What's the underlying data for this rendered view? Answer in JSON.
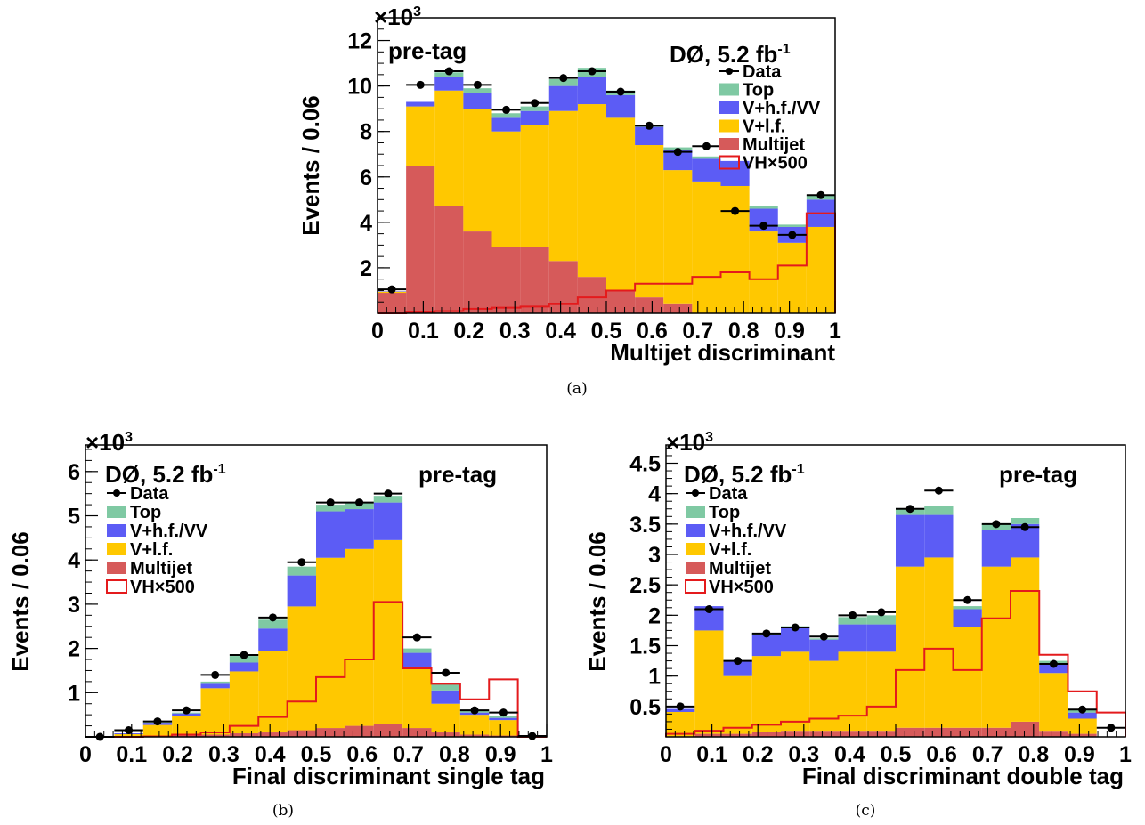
{
  "colors": {
    "top": "#7fc9a3",
    "vhf": "#5c5cf5",
    "vlf": "#ffc800",
    "multijet": "#d65a5a",
    "signal": "#e41a1c",
    "data": "#000000"
  },
  "chart_data": [
    {
      "id": "a",
      "type": "bar",
      "stacked": true,
      "caption": "(a)",
      "annotation_left": "pre-tag",
      "annotation_right_main": "DØ, 5.2 fb",
      "annotation_right_sup": "-1",
      "xlabel": "Multijet discriminant",
      "ylabel": "Events / 0.06",
      "y_multiplier_base": "×10",
      "y_multiplier_exp": "3",
      "xlim": [
        0,
        1
      ],
      "ylim": [
        0,
        13
      ],
      "xticks": [
        "0",
        "0.1",
        "0.2",
        "0.3",
        "0.4",
        "0.5",
        "0.6",
        "0.7",
        "0.8",
        "0.9",
        "1"
      ],
      "yticks": [
        "2",
        "4",
        "6",
        "8",
        "10",
        "12"
      ],
      "ytick_values": [
        2,
        4,
        6,
        8,
        10,
        12
      ],
      "legend_position": "top-right",
      "legend": [
        "Data",
        "Top",
        "V+h.f./VV",
        "V+l.f.",
        "Multijet",
        "VH×500"
      ],
      "bin_edges": [
        0,
        0.0625,
        0.125,
        0.1875,
        0.25,
        0.3125,
        0.375,
        0.4375,
        0.5,
        0.5625,
        0.625,
        0.6875,
        0.75,
        0.8125,
        0.875,
        0.9375,
        1.0
      ],
      "series": [
        {
          "name": "Multijet",
          "key": "multijet",
          "values": [
            0.9,
            6.5,
            4.7,
            3.6,
            2.9,
            2.9,
            2.3,
            1.6,
            1.0,
            0.7,
            0.4,
            0.0,
            0.0,
            0.0,
            0.0,
            0.0
          ]
        },
        {
          "name": "V+l.f.",
          "key": "vlf",
          "values": [
            0.05,
            2.6,
            5.1,
            5.4,
            5.1,
            5.4,
            6.6,
            7.6,
            7.6,
            6.7,
            5.9,
            5.8,
            5.6,
            3.6,
            3.1,
            3.8
          ]
        },
        {
          "name": "V+h.f./VV",
          "key": "vhf",
          "values": [
            0.02,
            0.2,
            0.6,
            0.7,
            0.6,
            0.6,
            1.1,
            1.2,
            1.0,
            0.8,
            0.9,
            1.0,
            1.1,
            1.0,
            0.7,
            1.2
          ]
        },
        {
          "name": "Top",
          "key": "top",
          "values": [
            0.0,
            0.0,
            0.2,
            0.2,
            0.2,
            0.2,
            0.3,
            0.4,
            0.2,
            0.1,
            0.1,
            0.1,
            0.0,
            0.1,
            0.1,
            0.2
          ]
        }
      ],
      "signal": {
        "name": "VH×500",
        "values": [
          0.0,
          0.05,
          0.1,
          0.2,
          0.25,
          0.3,
          0.4,
          0.7,
          1.0,
          1.3,
          1.3,
          1.6,
          1.8,
          1.5,
          2.1,
          4.4
        ]
      },
      "data": {
        "name": "Data",
        "values": [
          1.05,
          10.05,
          10.65,
          10.05,
          8.95,
          9.25,
          10.35,
          10.65,
          9.75,
          8.25,
          7.1,
          7.35,
          4.5,
          3.85,
          3.45,
          5.2
        ]
      }
    },
    {
      "id": "b",
      "type": "bar",
      "stacked": true,
      "caption": "(b)",
      "annotation_left": "DØ, 5.2 fb",
      "annotation_left_sup": "-1",
      "annotation_right": "pre-tag",
      "xlabel": "Final discriminant single tag",
      "ylabel": "Events / 0.06",
      "y_multiplier_base": "×10",
      "y_multiplier_exp": "3",
      "xlim": [
        0,
        1
      ],
      "ylim": [
        0,
        6.6
      ],
      "xticks": [
        "0",
        "0.1",
        "0.2",
        "0.3",
        "0.4",
        "0.5",
        "0.6",
        "0.7",
        "0.8",
        "0.9",
        "1"
      ],
      "yticks": [
        "1",
        "2",
        "3",
        "4",
        "5",
        "6"
      ],
      "ytick_values": [
        1,
        2,
        3,
        4,
        5,
        6
      ],
      "legend_position": "top-left",
      "legend": [
        "Data",
        "Top",
        "V+h.f./VV",
        "V+l.f.",
        "Multijet",
        "VH×500"
      ],
      "bin_edges": [
        0,
        0.0625,
        0.125,
        0.1875,
        0.25,
        0.3125,
        0.375,
        0.4375,
        0.5,
        0.5625,
        0.625,
        0.6875,
        0.75,
        0.8125,
        0.875,
        0.9375,
        1.0
      ],
      "series": [
        {
          "name": "Multijet",
          "key": "multijet",
          "values": [
            0.0,
            0.01,
            0.02,
            0.03,
            0.05,
            0.08,
            0.1,
            0.15,
            0.2,
            0.25,
            0.3,
            0.2,
            0.1,
            0.05,
            0.03,
            0.0
          ]
        },
        {
          "name": "V+l.f.",
          "key": "vlf",
          "values": [
            0.0,
            0.05,
            0.25,
            0.45,
            1.05,
            1.4,
            1.85,
            2.8,
            3.85,
            4.0,
            4.15,
            1.35,
            0.65,
            0.45,
            0.35,
            0.0
          ]
        },
        {
          "name": "V+h.f./VV",
          "key": "vhf",
          "values": [
            0.0,
            0.02,
            0.05,
            0.05,
            0.1,
            0.2,
            0.5,
            0.7,
            1.05,
            0.9,
            0.85,
            0.35,
            0.3,
            0.05,
            0.05,
            0.0
          ]
        },
        {
          "name": "Top",
          "key": "top",
          "values": [
            0.0,
            0.0,
            0.01,
            0.02,
            0.05,
            0.15,
            0.2,
            0.2,
            0.15,
            0.15,
            0.15,
            0.1,
            0.15,
            0.05,
            0.05,
            0.0
          ]
        }
      ],
      "signal": {
        "name": "VH×500",
        "values": [
          0.0,
          0.0,
          0.01,
          0.05,
          0.1,
          0.25,
          0.45,
          0.8,
          1.35,
          1.75,
          3.05,
          1.55,
          1.2,
          0.85,
          1.3,
          0.0
        ]
      },
      "data": {
        "name": "Data",
        "values": [
          0.0,
          0.15,
          0.35,
          0.6,
          1.4,
          1.85,
          2.7,
          3.95,
          5.3,
          5.3,
          5.5,
          2.25,
          1.45,
          0.6,
          0.55,
          0.02
        ]
      }
    },
    {
      "id": "c",
      "type": "bar",
      "stacked": true,
      "caption": "(c)",
      "annotation_left": "DØ, 5.2 fb",
      "annotation_left_sup": "-1",
      "annotation_right": "pre-tag",
      "xlabel": "Final discriminant double tag",
      "ylabel": "Events / 0.06",
      "y_multiplier_base": "×10",
      "y_multiplier_exp": "3",
      "xlim": [
        0,
        1
      ],
      "ylim": [
        0,
        4.8
      ],
      "xticks": [
        "0",
        "0.1",
        "0.2",
        "0.3",
        "0.4",
        "0.5",
        "0.6",
        "0.7",
        "0.8",
        "0.9",
        "1"
      ],
      "yticks": [
        "0.5",
        "1",
        "1.5",
        "2",
        "2.5",
        "3",
        "3.5",
        "4",
        "4.5"
      ],
      "ytick_values": [
        0.5,
        1,
        1.5,
        2,
        2.5,
        3,
        3.5,
        4,
        4.5
      ],
      "legend_position": "top-left",
      "legend": [
        "Data",
        "Top",
        "V+h.f./VV",
        "V+l.f.",
        "Multijet",
        "VH×500"
      ],
      "bin_edges": [
        0,
        0.0625,
        0.125,
        0.1875,
        0.25,
        0.3125,
        0.375,
        0.4375,
        0.5,
        0.5625,
        0.625,
        0.6875,
        0.75,
        0.8125,
        0.875,
        0.9375,
        1.0
      ],
      "series": [
        {
          "name": "Multijet",
          "key": "multijet",
          "values": [
            0.01,
            0.05,
            0.05,
            0.08,
            0.1,
            0.1,
            0.1,
            0.1,
            0.15,
            0.15,
            0.15,
            0.15,
            0.25,
            0.1,
            0.05,
            0.0
          ]
        },
        {
          "name": "V+l.f.",
          "key": "vlf",
          "values": [
            0.4,
            1.7,
            0.95,
            1.25,
            1.3,
            1.15,
            1.3,
            1.3,
            2.65,
            2.8,
            1.65,
            2.65,
            2.7,
            0.95,
            0.25,
            0.0
          ]
        },
        {
          "name": "V+h.f./VV",
          "key": "vhf",
          "values": [
            0.05,
            0.4,
            0.25,
            0.35,
            0.4,
            0.35,
            0.45,
            0.45,
            0.85,
            0.7,
            0.3,
            0.6,
            0.55,
            0.15,
            0.1,
            0.0
          ]
        },
        {
          "name": "Top",
          "key": "top",
          "values": [
            0.0,
            0.0,
            0.0,
            0.02,
            0.02,
            0.02,
            0.12,
            0.15,
            0.1,
            0.15,
            0.05,
            0.1,
            0.1,
            0.05,
            0.05,
            0.0
          ]
        }
      ],
      "signal": {
        "name": "VH×500",
        "values": [
          0.05,
          0.1,
          0.15,
          0.2,
          0.25,
          0.3,
          0.35,
          0.5,
          1.1,
          1.45,
          1.1,
          1.95,
          2.4,
          1.35,
          0.75,
          0.4
        ]
      },
      "data": {
        "name": "Data",
        "values": [
          0.5,
          2.1,
          1.25,
          1.7,
          1.8,
          1.65,
          2.0,
          2.05,
          3.75,
          4.05,
          2.25,
          3.5,
          3.45,
          1.2,
          0.45,
          0.15
        ]
      }
    }
  ]
}
